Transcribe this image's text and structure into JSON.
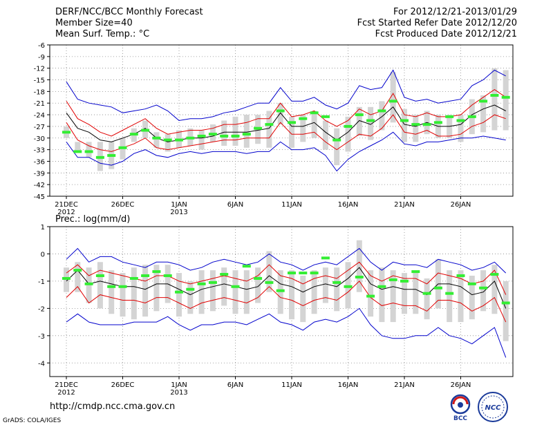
{
  "header": {
    "left": [
      "DERF/NCC/BCC Monthly Forecast",
      "Member Size=40",
      "Mean Surf. Temp.: °C"
    ],
    "right": [
      "For 2012/12/21-2013/01/29",
      "Fcst Started Refer Date 2012/12/20",
      "Fcst Produced Date 2012/12/21"
    ]
  },
  "footer": {
    "url": "http://cmdp.ncc.cma.gov.cn",
    "credit": "GrADS: COLA/IGES"
  },
  "logos": {
    "bcc": "BCC",
    "ncc": "NCC"
  },
  "colors": {
    "mean": "#000000",
    "spread": "#e00000",
    "envelope": "#0000cc",
    "box": "#d4d4d4",
    "obs": "#33ee33"
  },
  "chart_data": [
    {
      "type": "line",
      "title": "Mean Surf. Temp.: °C",
      "xlabel": "",
      "ylabel": "",
      "x_ticks": [
        {
          "day": 1,
          "label": "21DEC",
          "sub": "2012"
        },
        {
          "day": 6,
          "label": "26DEC",
          "sub": ""
        },
        {
          "day": 11,
          "label": "1JAN",
          "sub": "2013"
        },
        {
          "day": 16,
          "label": "6JAN",
          "sub": ""
        },
        {
          "day": 21,
          "label": "11JAN",
          "sub": ""
        },
        {
          "day": 26,
          "label": "16JAN",
          "sub": ""
        },
        {
          "day": 31,
          "label": "21JAN",
          "sub": ""
        },
        {
          "day": 36,
          "label": "26JAN",
          "sub": ""
        }
      ],
      "xlim": [
        1,
        40
      ],
      "ylim": [
        -45,
        -6
      ],
      "y_ticks": [
        -6,
        -9,
        -12,
        -15,
        -18,
        -21,
        -24,
        -27,
        -30,
        -33,
        -36,
        -39,
        -42,
        -45
      ],
      "grid": true,
      "series": [
        {
          "name": "max",
          "role": "envelope",
          "values": [
            -15.5,
            -20,
            -21,
            -21.5,
            -22,
            -23.5,
            -23,
            -22.5,
            -21.5,
            -23,
            -25.5,
            -25,
            -25,
            -24.5,
            -23.5,
            -23,
            -22,
            -21,
            -21,
            -17,
            -20.5,
            -20.5,
            -19.5,
            -21.5,
            -22.5,
            -21,
            -16.5,
            -17.5,
            -17,
            -12.5,
            -19.5,
            -20.5,
            -20,
            -21,
            -20.5,
            -20,
            -16.5,
            -15,
            -12.5,
            -14
          ]
        },
        {
          "name": "upper",
          "role": "spread",
          "values": [
            -20.5,
            -25,
            -26.5,
            -28.5,
            -29.5,
            -28,
            -26.5,
            -25,
            -27.5,
            -29,
            -28.5,
            -28,
            -28,
            -27.5,
            -26.5,
            -26.5,
            -26,
            -25,
            -25,
            -21,
            -24.5,
            -24,
            -23,
            -25.5,
            -27,
            -25.5,
            -22.5,
            -24,
            -23,
            -18.5,
            -24,
            -24.5,
            -23.5,
            -24.5,
            -24.5,
            -24,
            -21.5,
            -19.5,
            -17.5,
            -19.5
          ]
        },
        {
          "name": "mean",
          "role": "mean",
          "values": [
            -23.5,
            -27.5,
            -28.5,
            -30.5,
            -31,
            -30,
            -29,
            -27.5,
            -30,
            -31,
            -30.5,
            -30,
            -30,
            -29.5,
            -28.5,
            -28.5,
            -28.5,
            -28,
            -27.5,
            -23.5,
            -27,
            -27,
            -26,
            -28.5,
            -30.5,
            -28.5,
            -25.5,
            -26.5,
            -24.5,
            -22,
            -26.5,
            -27,
            -26,
            -27,
            -27,
            -26.5,
            -24,
            -22.5,
            -21.5,
            -23
          ]
        },
        {
          "name": "lower",
          "role": "spread",
          "values": [
            -26,
            -30.5,
            -32,
            -33,
            -33.5,
            -32.5,
            -31.5,
            -30,
            -32.5,
            -33,
            -32.5,
            -32,
            -31.5,
            -31,
            -30.5,
            -30.5,
            -30,
            -30,
            -30,
            -26,
            -29,
            -29,
            -28.5,
            -31,
            -33,
            -31,
            -29,
            -29.5,
            -27.5,
            -24,
            -28.5,
            -29,
            -28,
            -29.5,
            -29.5,
            -29,
            -27,
            -26,
            -24,
            -25
          ]
        },
        {
          "name": "min",
          "role": "envelope",
          "values": [
            -31,
            -35,
            -35,
            -36.5,
            -37,
            -36,
            -34,
            -33,
            -34.5,
            -35,
            -34,
            -33.5,
            -34,
            -33.5,
            -33.5,
            -33.5,
            -34,
            -33.5,
            -33.5,
            -31,
            -33,
            -33,
            -32.5,
            -34.5,
            -38.5,
            -35.5,
            -33.5,
            -32,
            -30.5,
            -28.5,
            -31.5,
            -32,
            -31,
            -31,
            -30.5,
            -30,
            -30,
            -29.5,
            -30,
            -30.5
          ]
        },
        {
          "name": "box_top",
          "role": "box",
          "values": [
            -27,
            -31,
            -31,
            -31,
            -31,
            -30,
            -27.5,
            -25.5,
            -28.5,
            -29,
            -28,
            -27.5,
            -28,
            -26.5,
            -25.5,
            -24.5,
            -24,
            -24,
            -23,
            -21,
            -24.5,
            -24,
            -23,
            -25.5,
            -27.5,
            -24.5,
            -22,
            -22,
            -20.5,
            -13,
            -22.5,
            -24,
            -23,
            -24,
            -24,
            -24,
            -20,
            -19,
            -12,
            -12.5
          ]
        },
        {
          "name": "box_bottom",
          "role": "box",
          "values": [
            -30,
            -33.5,
            -35,
            -38.5,
            -38,
            -35.5,
            -31,
            -30,
            -32.5,
            -33.5,
            -32.5,
            -32,
            -33,
            -31,
            -32,
            -32,
            -32.5,
            -31.5,
            -32.5,
            -26.5,
            -32.5,
            -31,
            -30,
            -33,
            -37,
            -33.5,
            -29.5,
            -30.5,
            -28,
            -26,
            -31,
            -31,
            -29,
            -30,
            -30,
            -31,
            -29,
            -28.5,
            -28,
            -28
          ]
        },
        {
          "name": "observed",
          "role": "obs",
          "values": [
            -28.5,
            -33.5,
            -33.5,
            -35,
            -34.5,
            -32.5,
            -29,
            -28,
            -30,
            -30.5,
            -30.5,
            -30,
            -29.5,
            -29,
            -29.5,
            -29.5,
            -29,
            -27.5,
            -26.5,
            -23,
            -26,
            -25,
            -23.5,
            -24.5,
            -30.5,
            -27,
            -24,
            -25.5,
            -23,
            -20.5,
            -25.5,
            -26.5,
            -26.5,
            -26,
            -24.5,
            -25.5,
            -24.5,
            -20.5,
            -19,
            -19.5
          ]
        }
      ]
    },
    {
      "type": "line",
      "title": "Prec.: log(mm/d)",
      "xlabel": "",
      "ylabel": "",
      "x_ticks": [
        {
          "day": 1,
          "label": "21DEC",
          "sub": "2012"
        },
        {
          "day": 6,
          "label": "26DEC",
          "sub": ""
        },
        {
          "day": 11,
          "label": "1JAN",
          "sub": "2013"
        },
        {
          "day": 16,
          "label": "6JAN",
          "sub": ""
        },
        {
          "day": 21,
          "label": "11JAN",
          "sub": ""
        },
        {
          "day": 26,
          "label": "16JAN",
          "sub": ""
        },
        {
          "day": 31,
          "label": "21JAN",
          "sub": ""
        },
        {
          "day": 36,
          "label": "26JAN",
          "sub": ""
        }
      ],
      "xlim": [
        1,
        40
      ],
      "ylim": [
        -4.5,
        1
      ],
      "y_ticks": [
        1,
        0,
        -1,
        -2,
        -3,
        -4
      ],
      "grid": true,
      "series": [
        {
          "name": "max",
          "role": "envelope",
          "values": [
            -0.2,
            0.2,
            -0.3,
            -0.1,
            -0.1,
            -0.3,
            -0.4,
            -0.5,
            -0.3,
            -0.3,
            -0.4,
            -0.6,
            -0.5,
            -0.3,
            -0.2,
            -0.3,
            -0.4,
            -0.3,
            0,
            -0.3,
            -0.4,
            -0.6,
            -0.4,
            -0.3,
            -0.4,
            -0.1,
            0.2,
            -0.3,
            -0.6,
            -0.3,
            -0.4,
            -0.4,
            -0.5,
            -0.2,
            -0.3,
            -0.4,
            -0.6,
            -0.5,
            -0.3,
            -0.7
          ]
        },
        {
          "name": "upper",
          "role": "spread",
          "values": [
            -0.7,
            -0.4,
            -0.8,
            -0.6,
            -0.7,
            -0.8,
            -0.9,
            -1,
            -0.8,
            -0.8,
            -1,
            -1.1,
            -1,
            -0.9,
            -0.8,
            -0.9,
            -1,
            -0.8,
            -0.4,
            -0.8,
            -0.9,
            -1.1,
            -0.9,
            -0.8,
            -0.9,
            -0.6,
            -0.3,
            -0.8,
            -1,
            -0.8,
            -0.9,
            -0.9,
            -1.1,
            -0.7,
            -0.8,
            -0.9,
            -1.1,
            -1,
            -0.6,
            -1.5
          ]
        },
        {
          "name": "mean",
          "role": "mean",
          "values": [
            -1,
            -0.6,
            -1.1,
            -1,
            -1.1,
            -1.2,
            -1.2,
            -1.3,
            -1.1,
            -1.1,
            -1.3,
            -1.5,
            -1.3,
            -1.2,
            -1.1,
            -1.2,
            -1.3,
            -1.2,
            -0.8,
            -1.1,
            -1.2,
            -1.4,
            -1.2,
            -1.1,
            -1.2,
            -0.9,
            -0.5,
            -1.1,
            -1.3,
            -1.2,
            -1.3,
            -1.3,
            -1.5,
            -1.1,
            -1.1,
            -1.2,
            -1.5,
            -1.4,
            -1,
            -2
          ]
        },
        {
          "name": "lower",
          "role": "spread",
          "values": [
            -1.6,
            -1.2,
            -1.8,
            -1.5,
            -1.6,
            -1.7,
            -1.7,
            -1.8,
            -1.6,
            -1.6,
            -1.8,
            -2,
            -1.8,
            -1.7,
            -1.6,
            -1.7,
            -1.8,
            -1.6,
            -1.2,
            -1.6,
            -1.7,
            -1.9,
            -1.7,
            -1.6,
            -1.7,
            -1.4,
            -1,
            -1.6,
            -1.9,
            -1.8,
            -1.9,
            -1.9,
            -2.1,
            -1.7,
            -1.7,
            -1.8,
            -2.1,
            -1.9,
            -1.6,
            -2.5
          ]
        },
        {
          "name": "min",
          "role": "envelope",
          "values": [
            -2.5,
            -2.2,
            -2.5,
            -2.6,
            -2.6,
            -2.6,
            -2.5,
            -2.5,
            -2.5,
            -2.3,
            -2.6,
            -2.8,
            -2.6,
            -2.6,
            -2.5,
            -2.5,
            -2.6,
            -2.4,
            -2.2,
            -2.5,
            -2.6,
            -2.8,
            -2.5,
            -2.4,
            -2.5,
            -2.3,
            -2,
            -2.6,
            -3,
            -3.1,
            -3.1,
            -3,
            -3,
            -2.7,
            -3,
            -3.1,
            -3.3,
            -3,
            -2.7,
            -3.8
          ]
        },
        {
          "name": "box_top",
          "role": "box",
          "values": [
            -0.5,
            -0.3,
            -0.5,
            -0.3,
            -0.6,
            -0.7,
            -0.5,
            -0.4,
            -0.4,
            -0.4,
            -0.7,
            -1,
            -0.6,
            -0.6,
            -0.5,
            -0.6,
            -0.6,
            -0.5,
            0.1,
            -0.6,
            -0.6,
            -0.8,
            -0.6,
            -0.5,
            -0.5,
            -0.3,
            0.5,
            -0.6,
            -0.5,
            -0.6,
            -0.7,
            -0.7,
            -0.9,
            -0.2,
            -0.6,
            -0.6,
            -0.8,
            -0.6,
            -0.4,
            -1
          ]
        },
        {
          "name": "box_bottom",
          "role": "box",
          "values": [
            -1.4,
            -1.4,
            -1.8,
            -2,
            -2.2,
            -2.3,
            -2.4,
            -2.3,
            -2.1,
            -1.8,
            -2.3,
            -2.2,
            -2.2,
            -2.1,
            -1.9,
            -2.2,
            -2.2,
            -1.8,
            -1.4,
            -2.2,
            -2.4,
            -2.5,
            -2.2,
            -1.8,
            -2.1,
            -2,
            -1.4,
            -2.3,
            -2.5,
            -2.5,
            -2.2,
            -2.2,
            -2.4,
            -2,
            -2.5,
            -2.5,
            -2.4,
            -2.1,
            -2.2,
            -3.2
          ]
        },
        {
          "name": "observed",
          "role": "obs",
          "values": [
            -0.9,
            -0.6,
            -1.1,
            -0.8,
            -1.2,
            -1.2,
            -0.9,
            -0.8,
            -0.65,
            -0.8,
            -1.4,
            -1.3,
            -1.1,
            -1.05,
            -0.75,
            -1.2,
            -0.45,
            -0.9,
            -1.05,
            -1.35,
            -0.7,
            -0.7,
            -0.7,
            -0.15,
            -1.05,
            -1.2,
            -0.85,
            -1.55,
            -1.2,
            -0.95,
            -1,
            -0.65,
            -1.45,
            -1.25,
            -1.45,
            -0.8,
            -1.1,
            -1.25,
            -0.75,
            -1.8
          ]
        }
      ]
    }
  ]
}
